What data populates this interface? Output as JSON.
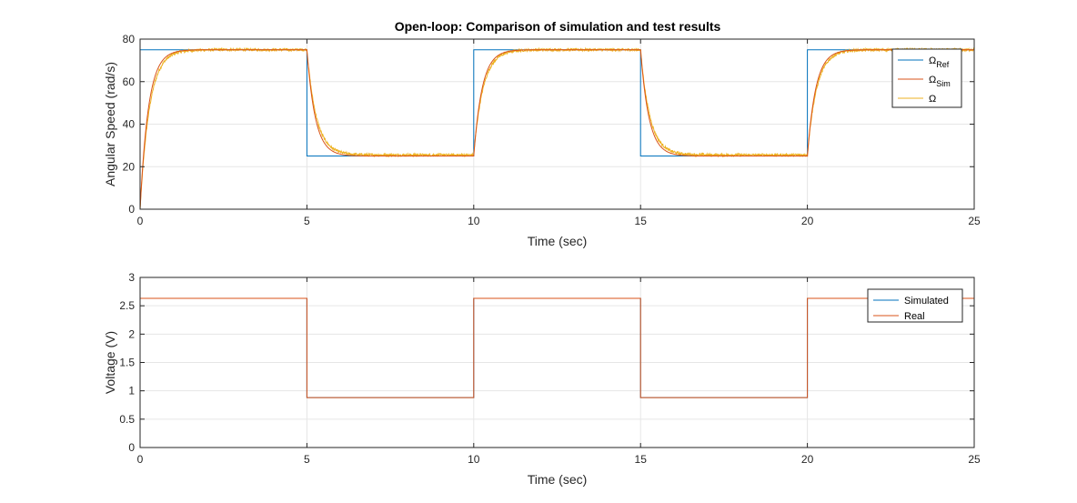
{
  "figure": {
    "title": "Open-loop: Comparison of simulation and test results"
  },
  "colors": {
    "blue": "#0072BD",
    "orange": "#D95319",
    "yellow": "#EDB120",
    "grid": "#e6e6e6",
    "axis": "#262626"
  },
  "chart_data": [
    {
      "type": "line",
      "title": "Open-loop: Comparison of simulation and test results",
      "xlabel": "Time (sec)",
      "ylabel": "Angular Speed (rad/s)",
      "xlim": [
        0,
        25
      ],
      "ylim": [
        0,
        80
      ],
      "xticks": [
        0,
        5,
        10,
        15,
        20,
        25
      ],
      "yticks": [
        0,
        20,
        40,
        60,
        80
      ],
      "grid": true,
      "legend_position": "top-right",
      "legend": [
        {
          "symbol": "Ω",
          "sub": "Ref"
        },
        {
          "symbol": "Ω",
          "sub": "Sim"
        },
        {
          "symbol": "Ω",
          "sub": ""
        }
      ],
      "series": [
        {
          "key": "ref",
          "color": "#0072BD",
          "kind": "step",
          "levels": [
            75,
            25,
            75,
            25,
            75,
            25
          ],
          "switch_times": [
            0,
            5,
            10,
            15,
            20,
            25
          ],
          "end_value": 0
        },
        {
          "key": "sim",
          "color": "#D95319",
          "kind": "first-order",
          "levels": [
            75,
            25,
            75,
            25,
            75,
            25
          ],
          "switch_times": [
            0,
            5,
            10,
            15,
            20,
            25
          ],
          "time_constant": 0.25,
          "start_value": 0
        },
        {
          "key": "meas",
          "color": "#EDB120",
          "kind": "first-order-noisy",
          "levels": [
            75,
            25.5,
            75,
            25.5,
            75,
            25
          ],
          "switch_times": [
            0,
            5,
            10,
            15,
            20,
            25
          ],
          "time_constant": 0.28,
          "start_value": 0,
          "noise": 0.6
        }
      ]
    },
    {
      "type": "line",
      "title": "",
      "xlabel": "Time (sec)",
      "ylabel": "Voltage (V)",
      "xlim": [
        0,
        25
      ],
      "ylim": [
        0,
        3
      ],
      "xticks": [
        0,
        5,
        10,
        15,
        20,
        25
      ],
      "yticks": [
        0,
        0.5,
        1,
        1.5,
        2,
        2.5,
        3
      ],
      "grid": true,
      "legend_position": "top-right",
      "legend": [
        {
          "symbol": "Simulated",
          "sub": ""
        },
        {
          "symbol": "Real",
          "sub": ""
        }
      ],
      "series": [
        {
          "key": "simulated",
          "color": "#0072BD",
          "kind": "step",
          "levels": [
            2.63,
            0.88,
            2.63,
            0.88,
            2.63,
            0.88
          ],
          "switch_times": [
            0,
            5,
            10,
            15,
            20,
            25
          ],
          "end_value": 0
        },
        {
          "key": "real",
          "color": "#D95319",
          "kind": "step",
          "levels": [
            2.63,
            0.88,
            2.63,
            0.88,
            2.63,
            0.88
          ],
          "switch_times": [
            0,
            5,
            10,
            15,
            20,
            25
          ],
          "end_value": 2.63
        }
      ]
    }
  ]
}
